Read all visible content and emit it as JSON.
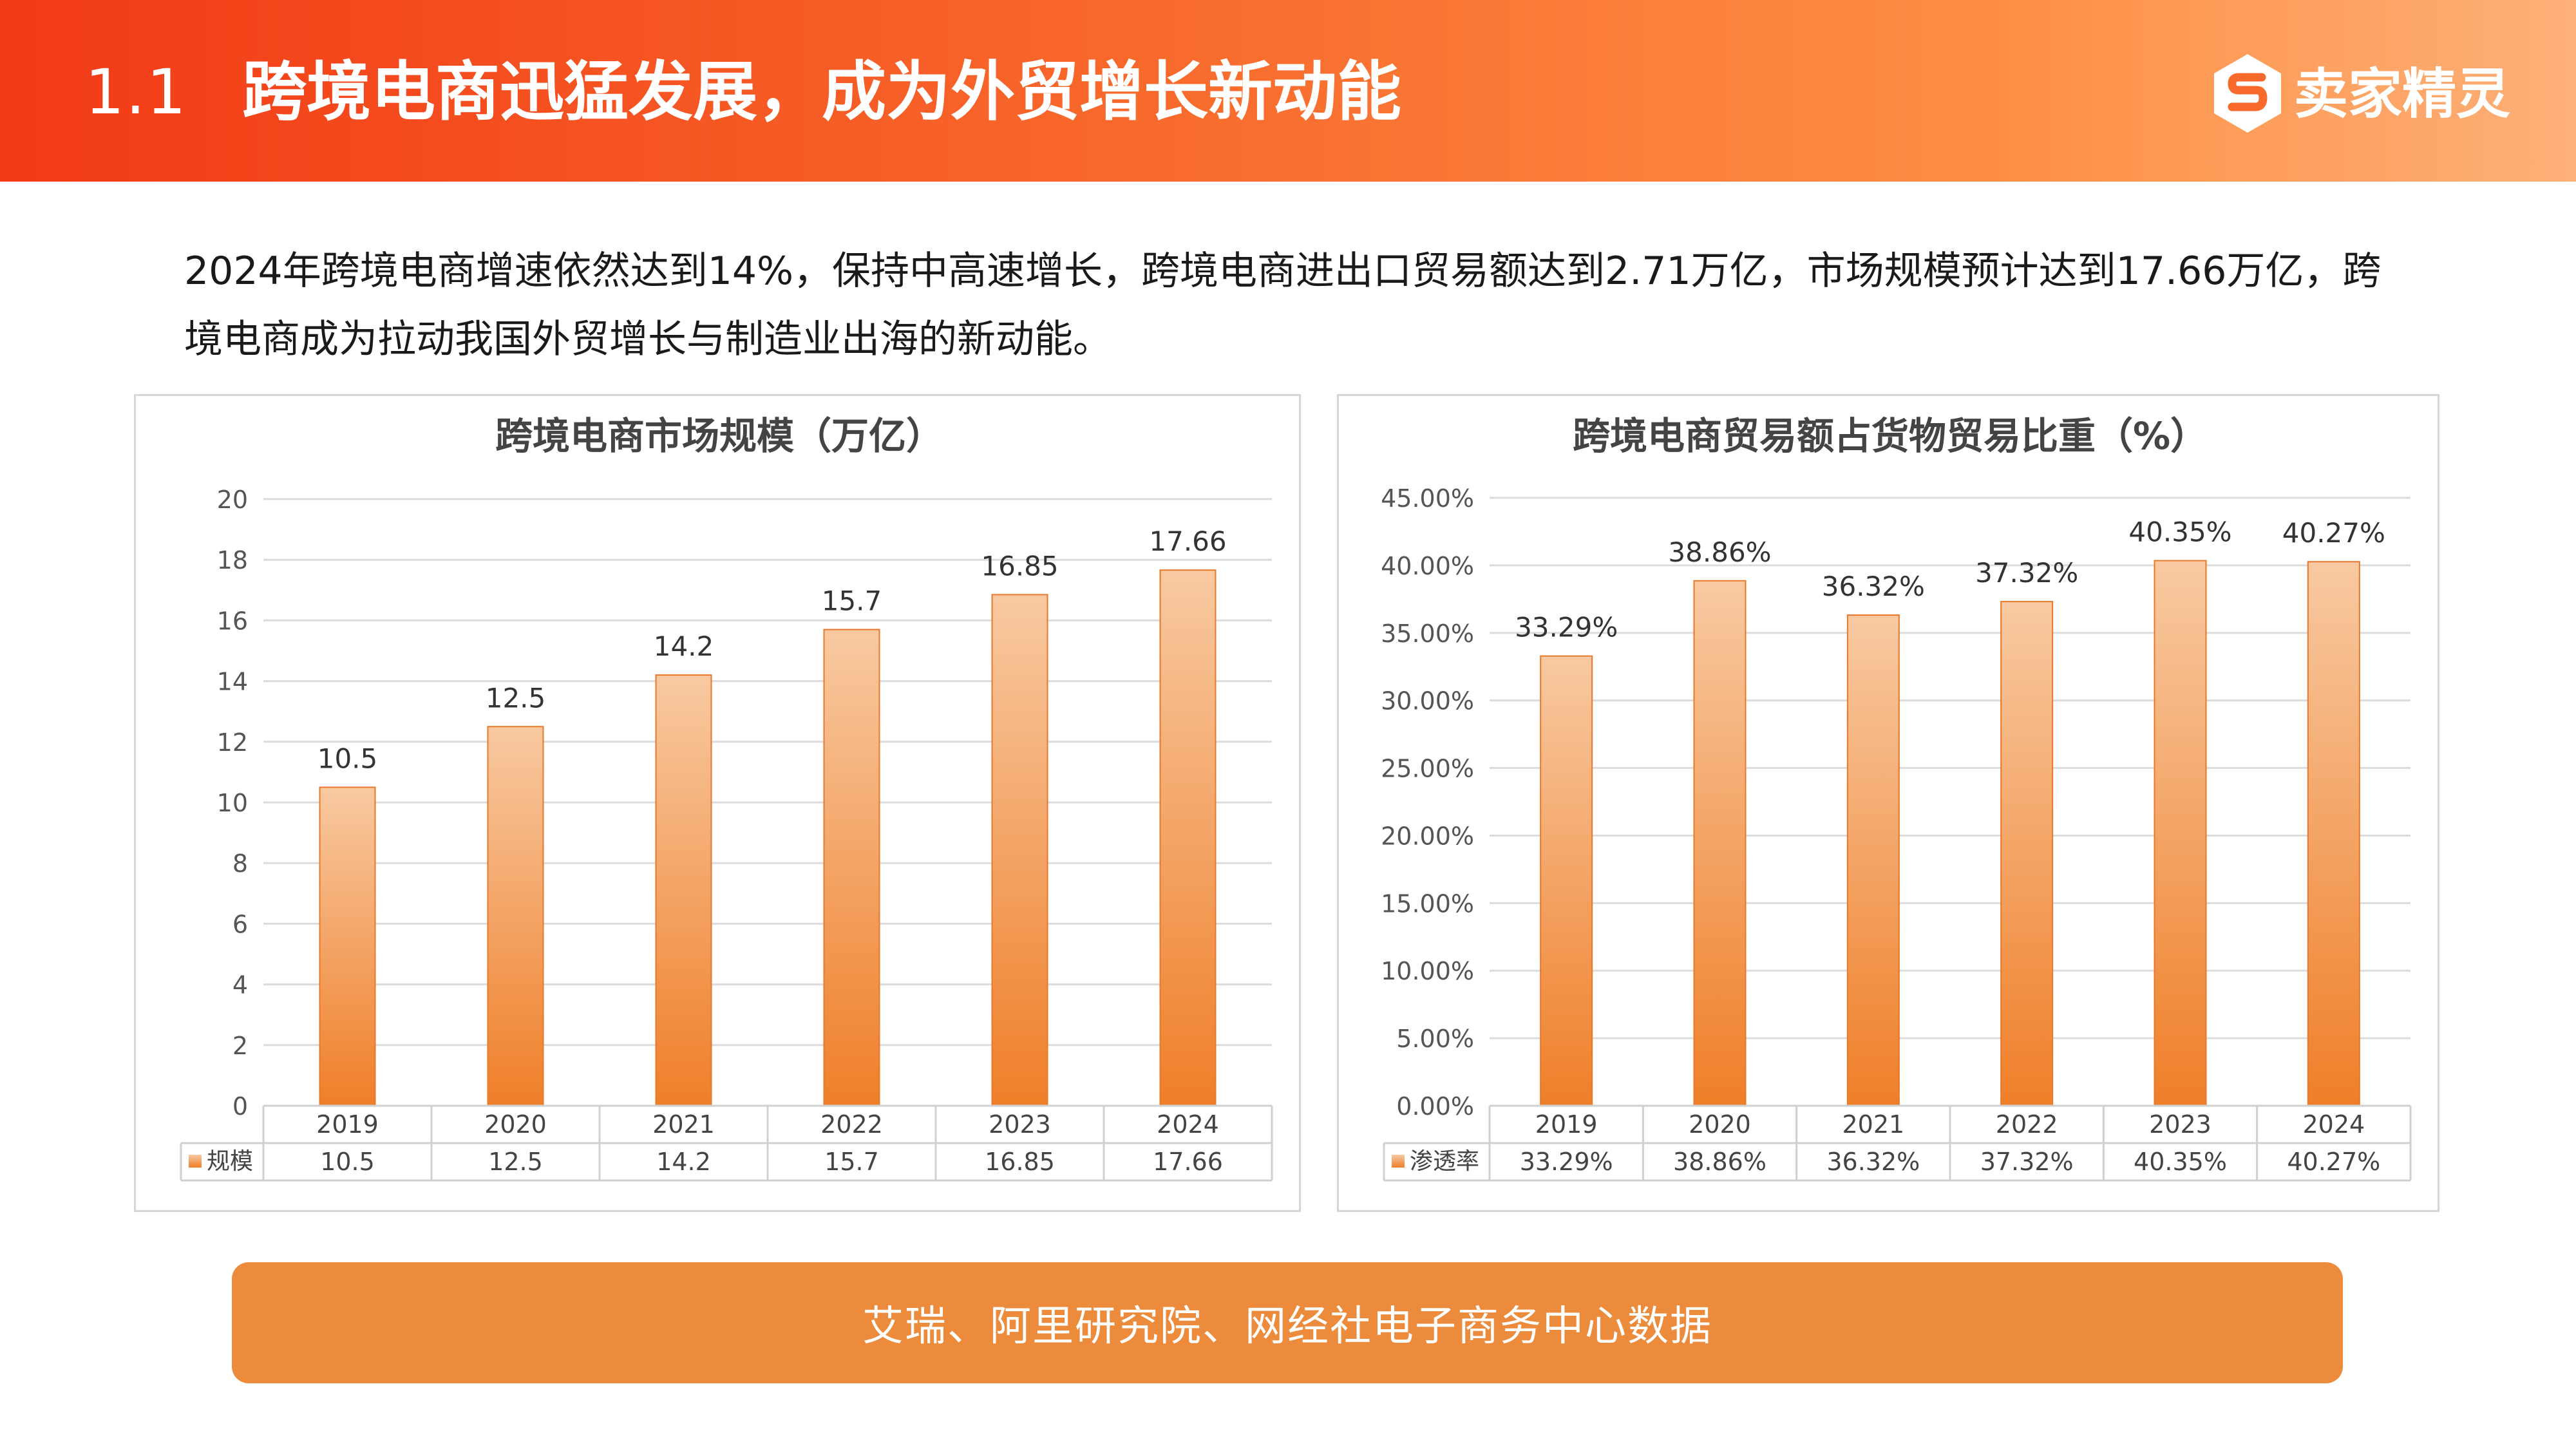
{
  "header": {
    "section_number": "1.1",
    "title": "跨境电商迅猛发展，成为外贸增长新动能",
    "brand": "卖家精灵",
    "brand_icon": "s-logo-icon"
  },
  "intro_text": "2024年跨境电商增速依然达到14%，保持中高速增长，跨境电商进出口贸易额达到2.71万亿，市场规模预计达到17.66万亿，跨境电商成为拉动我国外贸增长与制造业出海的新动能。",
  "source_text": "艾瑞、阿里研究院、网经社电子商务中心数据",
  "colors": {
    "header_start": "#f23a16",
    "header_end": "#fdb078",
    "bar_top": "#f8c9a1",
    "bar_bottom": "#ef7f29",
    "footer": "#ec8b3b"
  },
  "chart_data": [
    {
      "type": "bar",
      "title": "跨境电商市场规模（万亿）",
      "categories": [
        "2019",
        "2020",
        "2021",
        "2022",
        "2023",
        "2024"
      ],
      "series": [
        {
          "name": "规模",
          "values": [
            10.5,
            12.5,
            14.2,
            15.7,
            16.85,
            17.66
          ]
        }
      ],
      "value_labels": [
        "10.5",
        "12.5",
        "14.2",
        "15.7",
        "16.85",
        "17.66"
      ],
      "ylim": [
        0,
        20
      ],
      "yticks": [
        0,
        2,
        4,
        6,
        8,
        10,
        12,
        14,
        16,
        18,
        20
      ],
      "ytick_labels": [
        "0",
        "2",
        "4",
        "6",
        "8",
        "10",
        "12",
        "14",
        "16",
        "18",
        "20"
      ],
      "grid": true,
      "data_table": true,
      "legend": "data-table-left"
    },
    {
      "type": "bar",
      "title": "跨境电商贸易额占货物贸易比重（%）",
      "categories": [
        "2019",
        "2020",
        "2021",
        "2022",
        "2023",
        "2024"
      ],
      "series": [
        {
          "name": "渗透率",
          "values": [
            33.29,
            38.86,
            36.32,
            37.32,
            40.35,
            40.27
          ]
        }
      ],
      "value_labels": [
        "33.29%",
        "38.86%",
        "36.32%",
        "37.32%",
        "40.35%",
        "40.27%"
      ],
      "ylim": [
        0,
        45
      ],
      "yticks": [
        0,
        5,
        10,
        15,
        20,
        25,
        30,
        35,
        40,
        45
      ],
      "ytick_labels": [
        "0.00%",
        "5.00%",
        "10.00%",
        "15.00%",
        "20.00%",
        "25.00%",
        "30.00%",
        "35.00%",
        "40.00%",
        "45.00%"
      ],
      "grid": true,
      "data_table": true,
      "legend": "data-table-left"
    }
  ]
}
